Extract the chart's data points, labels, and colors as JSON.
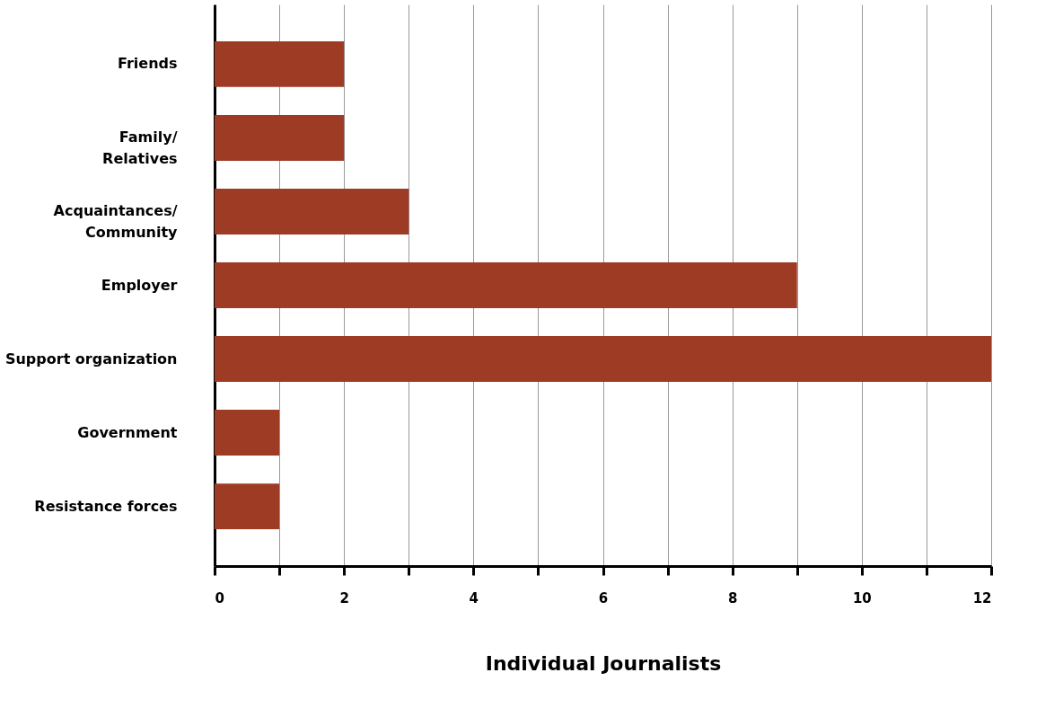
{
  "chart_data": {
    "type": "bar",
    "orientation": "horizontal",
    "xlabel": "Individual Journalists",
    "categories": [
      "Friends",
      "Family/Relatives",
      "Acquaintances/Community",
      "Employer",
      "Support organization",
      "Government",
      "Resistance forces"
    ],
    "values": [
      2,
      2,
      3,
      9,
      12,
      1,
      1
    ],
    "color": "#9e3b25",
    "xlim": [
      0,
      12
    ],
    "xticks": [
      0,
      {
        "value": 1,
        "label": null
      },
      2,
      {
        "value": 3,
        "label": null
      },
      4,
      {
        "value": 5,
        "label": null
      },
      6,
      {
        "value": 7,
        "label": null
      },
      8,
      {
        "value": 9,
        "label": null
      },
      10,
      {
        "value": 11,
        "label": null
      },
      12
    ],
    "grid": "x"
  }
}
